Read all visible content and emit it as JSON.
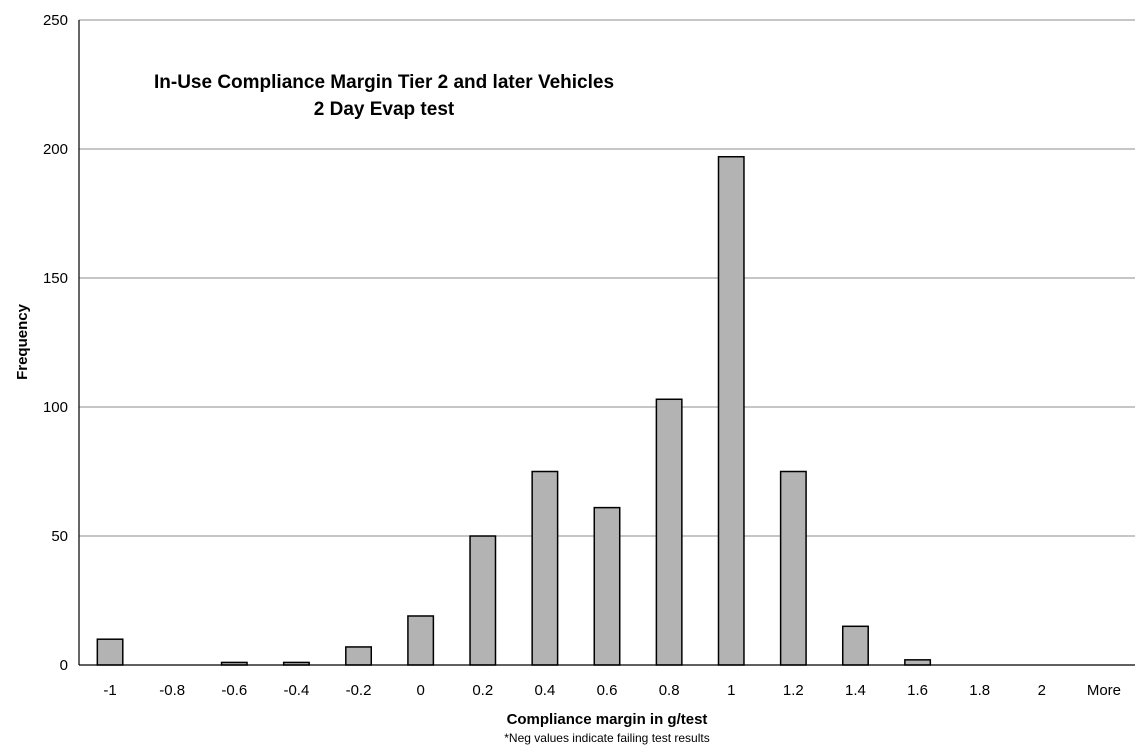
{
  "chart_data": {
    "type": "bar",
    "title": "In-Use Compliance Margin Tier 2 and later Vehicles",
    "subtitle": "2 Day Evap test",
    "xlabel": "Compliance margin in g/test",
    "note": "*Neg values indicate failing test results",
    "ylabel": "Frequency",
    "categories": [
      "-1",
      "-0.8",
      "-0.6",
      "-0.4",
      "-0.2",
      "0",
      "0.2",
      "0.4",
      "0.6",
      "0.8",
      "1",
      "1.2",
      "1.4",
      "1.6",
      "1.8",
      "2",
      "More"
    ],
    "values": [
      10,
      0,
      1,
      1,
      7,
      19,
      50,
      75,
      61,
      103,
      197,
      75,
      15,
      2,
      0,
      0,
      0
    ],
    "ylim": [
      0,
      250
    ],
    "yticks": [
      "0",
      "50",
      "100",
      "150",
      "200",
      "250"
    ],
    "grid": true,
    "legend": "none",
    "colors": {
      "bar_fill": "#b3b3b3",
      "bar_stroke": "#000000",
      "grid": "#8c8c8c"
    }
  }
}
